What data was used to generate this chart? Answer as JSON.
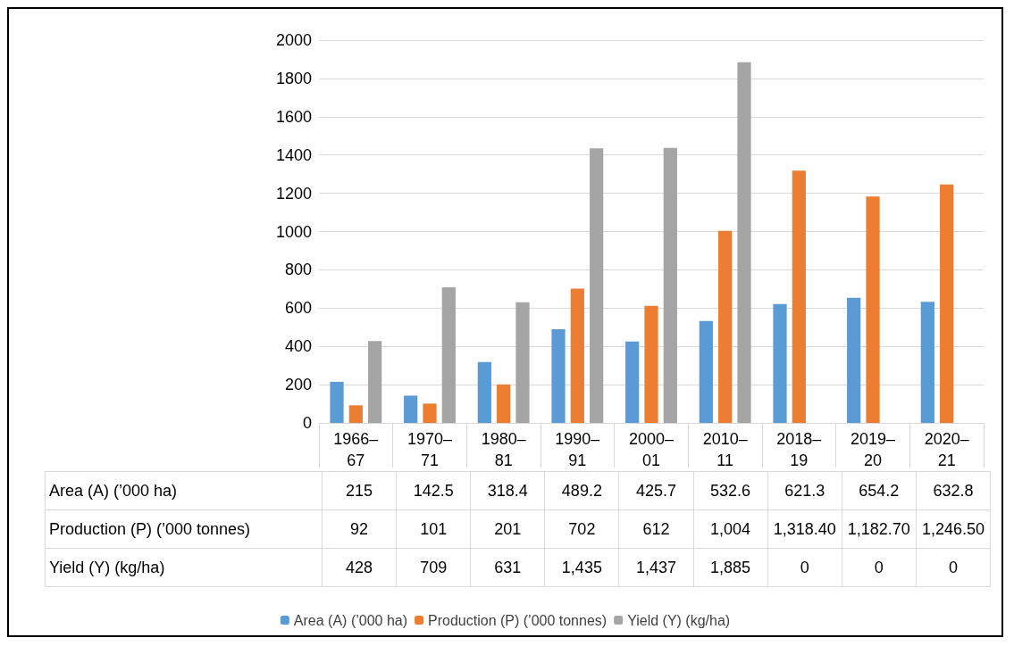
{
  "chart_data": {
    "type": "bar",
    "categories": [
      "1966–67",
      "1970–71",
      "1980–81",
      "1990–91",
      "2000–01",
      "2010–11",
      "2018–19",
      "2019–20",
      "2020–21"
    ],
    "series": [
      {
        "name": "Area (A) (’000 ha)",
        "color": "#5b9bd5",
        "values": [
          215,
          142.5,
          318.4,
          489.2,
          425.7,
          532.6,
          621.3,
          654.2,
          632.8
        ],
        "value_labels": [
          "215",
          "142.5",
          "318.4",
          "489.2",
          "425.7",
          "532.6",
          "621.3",
          "654.2",
          "632.8"
        ]
      },
      {
        "name": "Production (P) (’000 tonnes)",
        "color": "#ed7d31",
        "values": [
          92,
          101,
          201,
          702,
          612,
          1004,
          1318.4,
          1182.7,
          1246.5
        ],
        "value_labels": [
          "92",
          "101",
          "201",
          "702",
          "612",
          "1,004",
          "1,318.40",
          "1,182.70",
          "1,246.50"
        ]
      },
      {
        "name": "Yield (Y) (kg/ha)",
        "color": "#a5a5a5",
        "values": [
          428,
          709,
          631,
          1435,
          1437,
          1885,
          0,
          0,
          0
        ],
        "value_labels": [
          "428",
          "709",
          "631",
          "1,435",
          "1,437",
          "1,885",
          "0",
          "0",
          "0"
        ]
      }
    ],
    "ylim": [
      0,
      2000
    ],
    "yticks": [
      0,
      200,
      400,
      600,
      800,
      1000,
      1200,
      1400,
      1600,
      1800,
      2000
    ],
    "grid": "y",
    "legend": "bottom"
  }
}
